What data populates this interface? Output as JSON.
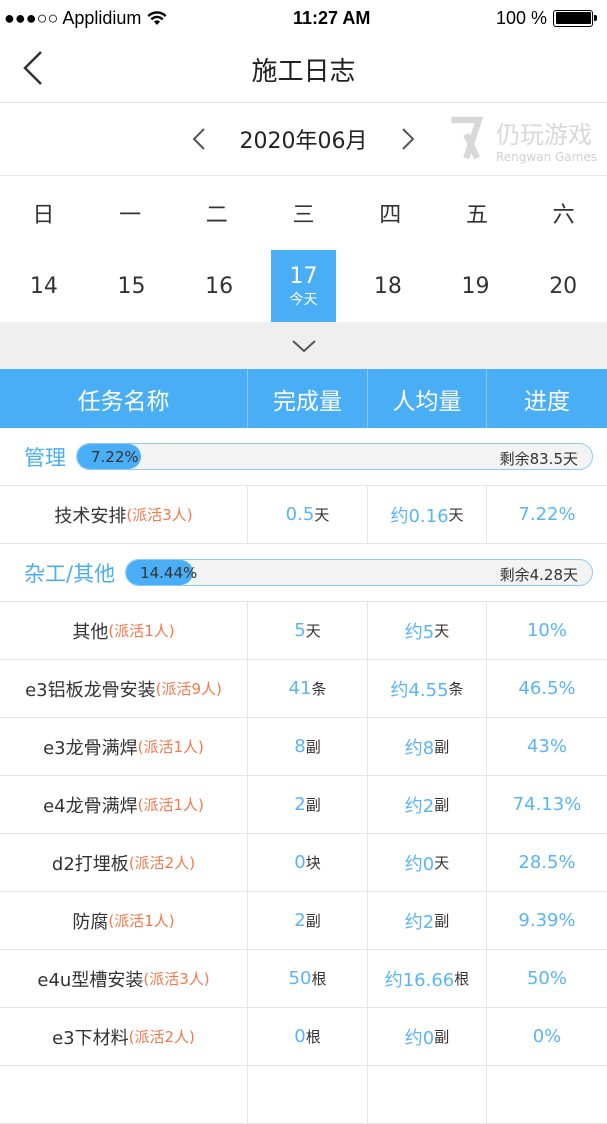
{
  "status": {
    "carrier": "●●●○○ Applidium",
    "time": "11:27 AM",
    "battery": "100 %"
  },
  "nav": {
    "title": "施工日志"
  },
  "calendar": {
    "month": "2020年06月",
    "weekdays": [
      "日",
      "一",
      "二",
      "三",
      "四",
      "五",
      "六"
    ],
    "dates": [
      {
        "day": "14"
      },
      {
        "day": "15"
      },
      {
        "day": "16"
      },
      {
        "day": "17",
        "note": "今天",
        "selected": true
      },
      {
        "day": "18"
      },
      {
        "day": "19"
      },
      {
        "day": "20"
      }
    ]
  },
  "table": {
    "headers": [
      "任务名称",
      "完成量",
      "人均量",
      "进度"
    ]
  },
  "sections": [
    {
      "group": "管理",
      "percent_label": "7.22%",
      "progress": 7.22,
      "remaining": "剩余83.5天",
      "rows": [
        {
          "name": "技术安排",
          "assign": "(派活3人)",
          "done": "0.5",
          "done_unit": "天",
          "avg": "约0.16",
          "avg_unit": "天",
          "progress": "7.22%"
        }
      ]
    },
    {
      "group": "杂工/其他",
      "percent_label": "14.44%",
      "progress": 14.44,
      "remaining": "剩余4.28天",
      "rows": [
        {
          "name": "其他",
          "assign": "(派活1人)",
          "done": "5",
          "done_unit": "天",
          "avg": "约5",
          "avg_unit": "天",
          "progress": "10%"
        },
        {
          "name": "e3铝板龙骨安装",
          "assign": "(派活9人)",
          "done": "41",
          "done_unit": "条",
          "avg": "约4.55",
          "avg_unit": "条",
          "progress": "46.5%"
        },
        {
          "name": "e3龙骨满焊",
          "assign": "(派活1人)",
          "done": "8",
          "done_unit": "副",
          "avg": "约8",
          "avg_unit": "副",
          "progress": "43%"
        },
        {
          "name": "e4龙骨满焊",
          "assign": "(派活1人)",
          "done": "2",
          "done_unit": "副",
          "avg": "约2",
          "avg_unit": "副",
          "progress": "74.13%"
        },
        {
          "name": "d2打埋板",
          "assign": "(派活2人)",
          "done": "0",
          "done_unit": "块",
          "avg": "约0",
          "avg_unit": "天",
          "progress": "28.5%"
        },
        {
          "name": "防腐",
          "assign": "(派活1人)",
          "done": "2",
          "done_unit": "副",
          "avg": "约2",
          "avg_unit": "副",
          "progress": "9.39%"
        },
        {
          "name": "e4u型槽安装",
          "assign": "(派活3人)",
          "done": "50",
          "done_unit": "根",
          "avg": "约16.66",
          "avg_unit": "根",
          "progress": "50%"
        },
        {
          "name": "e3下材料",
          "assign": "(派活2人)",
          "done": "0",
          "done_unit": "根",
          "avg": "约0",
          "avg_unit": "副",
          "progress": "0%"
        }
      ]
    }
  ],
  "colors": {
    "accent": "#4aaef6",
    "assign": "#f5774a",
    "collapse_bg": "#efefef"
  },
  "watermark": {
    "name": "仍玩游戏",
    "sub": "Rengwan Games"
  }
}
